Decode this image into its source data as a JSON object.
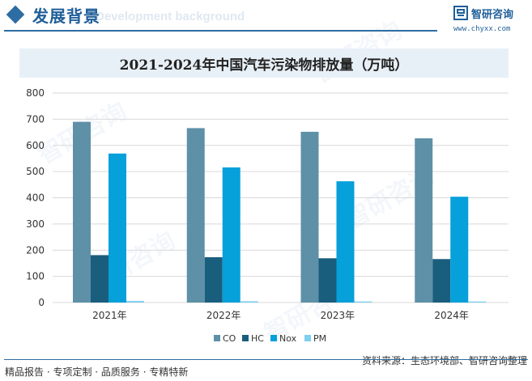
{
  "header": {
    "title": "发展背景",
    "subtitle": "Development background",
    "logo_name": "智研咨询",
    "logo_url": "www.chyxx.com"
  },
  "watermark_text": "智研咨询",
  "footer": {
    "left": "精品报告 · 专项定制 · 品质服务 · 专精特新",
    "source": "资料来源：生态环境部、智研咨询整理"
  },
  "colors": {
    "CO": "#5e90a8",
    "HC": "#1a5e7e",
    "Nox": "#06a0da",
    "PM": "#7ecff0",
    "accent": "#2d6da3"
  },
  "chart_data": {
    "type": "bar",
    "title": "2021-2024年中国汽车污染物排放量（万吨）",
    "categories": [
      "2021年",
      "2022年",
      "2023年",
      "2024年"
    ],
    "series": [
      {
        "name": "CO",
        "values": [
          690,
          666,
          652,
          627
        ]
      },
      {
        "name": "HC",
        "values": [
          181,
          173,
          169,
          166
        ]
      },
      {
        "name": "Nox",
        "values": [
          569,
          516,
          463,
          404
        ]
      },
      {
        "name": "PM",
        "values": [
          6,
          5,
          4,
          4
        ]
      }
    ],
    "ylim": [
      0,
      800
    ],
    "yticks": [
      "0",
      "100",
      "200",
      "300",
      "400",
      "500",
      "600",
      "700",
      "800"
    ],
    "grid": true,
    "legend_position": "bottom"
  }
}
